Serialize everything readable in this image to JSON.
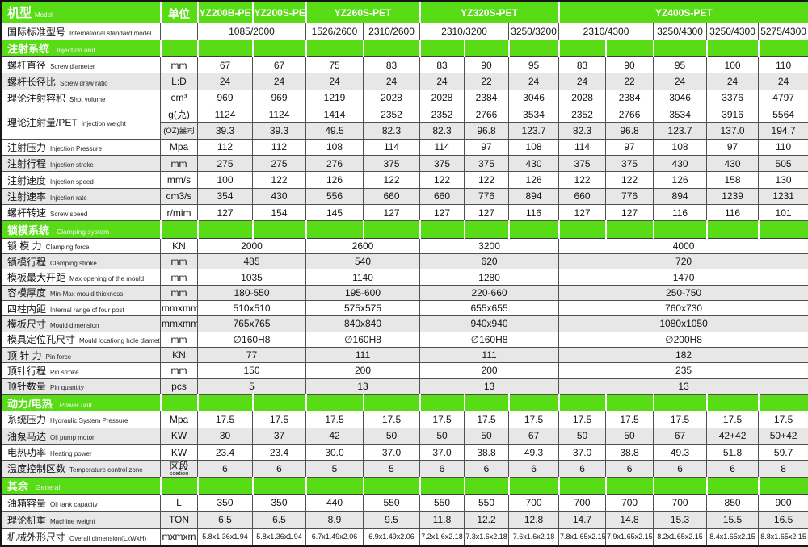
{
  "colors": {
    "section_green": "#57dc16",
    "row_stripe_gray": "#e7e7e7",
    "grid_line": "#505050",
    "header_text": "#ffffff",
    "body_text": "#141414"
  },
  "header": {
    "model_zh": "机型",
    "model_en": "Model",
    "unit_label": "单位",
    "models": [
      {
        "name": "YZ200B-PET",
        "span": 1
      },
      {
        "name": "YZ200S-PET",
        "span": 1
      },
      {
        "name": "YZ260S-PET",
        "span": 2
      },
      {
        "name": "YZ320S-PET",
        "span": 3
      },
      {
        "name": "YZ400S-PET",
        "span": 5
      }
    ]
  },
  "intl_row": {
    "label_zh": "国际标准型号",
    "label_en": "International standard model",
    "values": [
      "1085/2000",
      "1526/2600",
      "2310/2600",
      "2310/3200",
      "3250/3200",
      "2310/4300",
      "3250/4300",
      "3250/4300",
      "5275/4300"
    ],
    "spans": [
      2,
      1,
      1,
      2,
      1,
      2,
      1,
      1,
      1
    ]
  },
  "sections": [
    {
      "key": "injection-unit",
      "title_zh": "注射系统",
      "title_en": "Injection unit",
      "rows": [
        {
          "label_zh": "螺杆直径",
          "label_en": "Screw diameter",
          "unit": "mm",
          "shade": false,
          "values": [
            "67",
            "67",
            "75",
            "83",
            "83",
            "90",
            "95",
            "83",
            "90",
            "95",
            "100",
            "110"
          ]
        },
        {
          "label_zh": "螺杆长径比",
          "label_en": "Screw draw ratio",
          "unit": "L:D",
          "shade": true,
          "values": [
            "24",
            "24",
            "24",
            "24",
            "24",
            "22",
            "24",
            "24",
            "22",
            "24",
            "24",
            "24"
          ]
        },
        {
          "label_zh": "理论注射容积",
          "label_en": "Shot volume",
          "unit": "cm³",
          "shade": false,
          "values": [
            "969",
            "969",
            "1219",
            "2028",
            "2028",
            "2384",
            "3046",
            "2028",
            "2384",
            "3046",
            "3376",
            "4797"
          ]
        },
        {
          "label_zh": "理论注射量/PET",
          "label_en": "Injection weight",
          "label_rowspan": 2,
          "unit": "g(克)",
          "shade": false,
          "values": [
            "1124",
            "1124",
            "1414",
            "2352",
            "2352",
            "2766",
            "3534",
            "2352",
            "2766",
            "3534",
            "3916",
            "5564"
          ]
        },
        {
          "label_zh": null,
          "unit": "(OZ)盎司",
          "unit_small": true,
          "shade": true,
          "values": [
            "39.3",
            "39.3",
            "49.5",
            "82.3",
            "82.3",
            "96.8",
            "123.7",
            "82.3",
            "96.8",
            "123.7",
            "137.0",
            "194.7"
          ]
        },
        {
          "label_zh": "注射压力",
          "label_en": "Injection Pressure",
          "unit": "Mpa",
          "shade": false,
          "values": [
            "112",
            "112",
            "108",
            "114",
            "114",
            "97",
            "108",
            "114",
            "97",
            "108",
            "97",
            "110"
          ]
        },
        {
          "label_zh": "注射行程",
          "label_en": "Injection stroke",
          "unit": "mm",
          "shade": true,
          "values": [
            "275",
            "275",
            "276",
            "375",
            "375",
            "375",
            "430",
            "375",
            "375",
            "430",
            "430",
            "505"
          ]
        },
        {
          "label_zh": "注射速度",
          "label_en": "Injection speed",
          "unit": "mm/s",
          "shade": false,
          "values": [
            "100",
            "122",
            "126",
            "122",
            "122",
            "122",
            "126",
            "122",
            "122",
            "126",
            "158",
            "130"
          ]
        },
        {
          "label_zh": "注射速率",
          "label_en": "Injection rate",
          "unit": "cm3/s",
          "shade": true,
          "values": [
            "354",
            "430",
            "556",
            "660",
            "660",
            "776",
            "894",
            "660",
            "776",
            "894",
            "1239",
            "1231"
          ]
        },
        {
          "label_zh": "螺杆转速",
          "label_en": "Screw speed",
          "unit": "r/mim",
          "shade": false,
          "values": [
            "127",
            "154",
            "145",
            "127",
            "127",
            "127",
            "116",
            "127",
            "127",
            "116",
            "116",
            "101"
          ]
        }
      ]
    },
    {
      "key": "clamping-system",
      "title_zh": "锁模系统",
      "title_en": "Clamping system",
      "rows": [
        {
          "label_zh": "锁 模 力",
          "label_en": "Clamping force",
          "unit": "KN",
          "shade": false,
          "values": [
            "2000",
            "2600",
            "3200",
            "4000"
          ],
          "spans": [
            2,
            2,
            3,
            5
          ]
        },
        {
          "label_zh": "锁模行程",
          "label_en": "Clamping stroke",
          "unit": "mm",
          "shade": true,
          "values": [
            "485",
            "540",
            "620",
            "720"
          ],
          "spans": [
            2,
            2,
            3,
            5
          ]
        },
        {
          "label_zh": "模板最大开距",
          "label_en": "Max opening of the mould",
          "unit": "mm",
          "shade": false,
          "values": [
            "1035",
            "1140",
            "1280",
            "1470"
          ],
          "spans": [
            2,
            2,
            3,
            5
          ]
        },
        {
          "label_zh": "容模厚度",
          "label_en": "Min-Max mould thickness",
          "unit": "mm",
          "shade": true,
          "values": [
            "180-550",
            "195-600",
            "220-660",
            "250-750"
          ],
          "spans": [
            2,
            2,
            3,
            5
          ]
        },
        {
          "label_zh": "四柱内距",
          "label_en": "Internal range of four post",
          "unit": "mmxmm",
          "shade": false,
          "values": [
            "510x510",
            "575x575",
            "655x655",
            "760x730"
          ],
          "spans": [
            2,
            2,
            3,
            5
          ]
        },
        {
          "label_zh": "模板尺寸",
          "label_en": "Mould dimension",
          "unit": "mmxmm",
          "shade": true,
          "values": [
            "765x765",
            "840x840",
            "940x940",
            "1080x1050"
          ],
          "spans": [
            2,
            2,
            3,
            5
          ]
        },
        {
          "label_zh": "模具定位孔尺寸",
          "label_en": "Mould locationg hole diameter",
          "unit": "mm",
          "shade": false,
          "values": [
            "∅160H8",
            "∅160H8",
            "∅160H8",
            "∅200H8"
          ],
          "spans": [
            2,
            2,
            3,
            5
          ]
        },
        {
          "label_zh": "顶 针 力",
          "label_en": "Pin force",
          "unit": "KN",
          "shade": true,
          "values": [
            "77",
            "111",
            "111",
            "182"
          ],
          "spans": [
            2,
            2,
            3,
            5
          ]
        },
        {
          "label_zh": "顶针行程",
          "label_en": "Pin stroke",
          "unit": "mm",
          "shade": false,
          "values": [
            "150",
            "200",
            "200",
            "235"
          ],
          "spans": [
            2,
            2,
            3,
            5
          ]
        },
        {
          "label_zh": "顶针数量",
          "label_en": "Pin quantity",
          "unit": "pcs",
          "shade": true,
          "values": [
            "5",
            "13",
            "13",
            "13"
          ],
          "spans": [
            2,
            2,
            3,
            5
          ]
        }
      ]
    },
    {
      "key": "power-unit",
      "title_zh": "动力/电热",
      "title_en": "Power unit",
      "rows": [
        {
          "label_zh": "系统压力",
          "label_en": "Hydraulic System Pressure",
          "unit": "Mpa",
          "shade": false,
          "values": [
            "17.5",
            "17.5",
            "17.5",
            "17.5",
            "17.5",
            "17.5",
            "17.5",
            "17.5",
            "17.5",
            "17.5",
            "17.5",
            "17.5"
          ]
        },
        {
          "label_zh": "油泵马达",
          "label_en": "Oil pump motor",
          "unit": "KW",
          "shade": true,
          "values": [
            "30",
            "37",
            "42",
            "50",
            "50",
            "50",
            "67",
            "50",
            "50",
            "67",
            "42+42",
            "50+42"
          ]
        },
        {
          "label_zh": "电热功率",
          "label_en": "Heating power",
          "unit": "KW",
          "shade": false,
          "values": [
            "23.4",
            "23.4",
            "30.0",
            "37.0",
            "37.0",
            "38.8",
            "49.3",
            "37.0",
            "38.8",
            "49.3",
            "51.8",
            "59.7"
          ]
        },
        {
          "label_zh": "温度控制区数",
          "label_en": "Temperature control zone",
          "unit": "区段",
          "unit_sub": "scetion",
          "shade": true,
          "values": [
            "6",
            "6",
            "5",
            "5",
            "6",
            "6",
            "6",
            "6",
            "6",
            "6",
            "6",
            "8"
          ]
        }
      ]
    },
    {
      "key": "general",
      "title_zh": "其余",
      "title_en": "General",
      "rows": [
        {
          "label_zh": "油箱容量",
          "label_en": "Oil tank capacity",
          "unit": "L",
          "shade": false,
          "values": [
            "350",
            "350",
            "440",
            "550",
            "550",
            "550",
            "700",
            "700",
            "700",
            "700",
            "850",
            "900"
          ]
        },
        {
          "label_zh": "理论机重",
          "label_en": "Machine weight",
          "unit": "TON",
          "shade": true,
          "values": [
            "6.5",
            "6.5",
            "8.9",
            "9.5",
            "11.8",
            "12.2",
            "12.8",
            "14.7",
            "14.8",
            "15.3",
            "15.5",
            "16.5"
          ]
        },
        {
          "label_zh": "机械外形尺寸",
          "label_en": "Overall dimension(LxWxH)",
          "unit": "mxmxm",
          "shade": false,
          "small": true,
          "values": [
            "5.8x1.36x1.94",
            "5.8x1.36x1.94",
            "6.7x1.49x2.06",
            "6.9x1.49x2.06",
            "7.2x1.6x2.18",
            "7.3x1.6x2.18",
            "7.6x1.6x2.18",
            "7.8x1.65x2.15",
            "7.9x1.65x2.15",
            "8.2x1.65x2.15",
            "8.4x1.65x2.15",
            "8.8x1.65x2.15"
          ]
        }
      ]
    }
  ]
}
